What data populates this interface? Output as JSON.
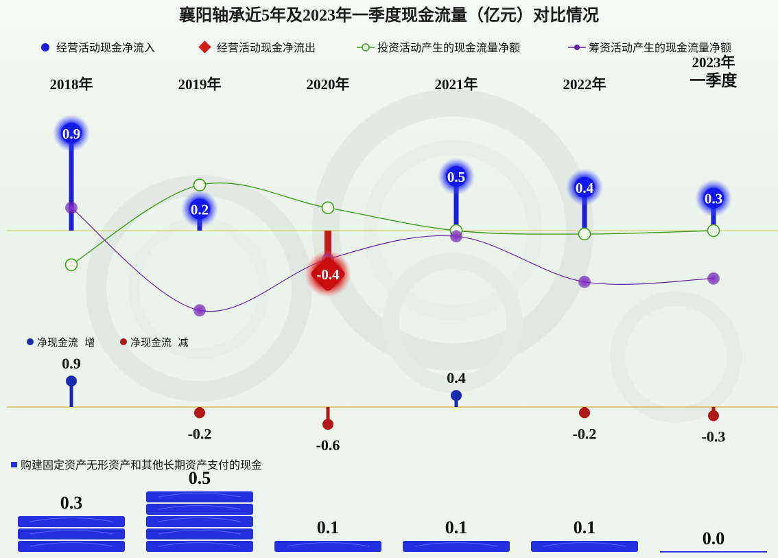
{
  "chart_data": {
    "type": "combo",
    "title": "襄阳轴承近5年及2023年一季度现金流量（亿元）对比情况",
    "categories": [
      "2018年",
      "2019年",
      "2020年",
      "2021年",
      "2022年",
      "2023年\n一季度"
    ],
    "legend_top": [
      {
        "name": "经营活动现金净流入",
        "color": "#1a1fd6",
        "marker": "dot"
      },
      {
        "name": "经营活动现金净流出",
        "color": "#d11b1b",
        "marker": "diamond"
      },
      {
        "name": "投资活动产生的现金流量净额",
        "color": "#3f9e1f",
        "marker": "ring"
      },
      {
        "name": "筹资活动产生的现金流量净额",
        "color": "#6a1fa8",
        "marker": "dot"
      }
    ],
    "operating_cash_flow": [
      0.9,
      0.2,
      -0.4,
      0.5,
      0.4,
      0.3
    ],
    "operating_labels": [
      "0.9",
      "0.2",
      "-0.4",
      "0.5",
      "0.4",
      "0.3"
    ],
    "investing_cash_flow": [
      -0.3,
      0.4,
      0.2,
      0.0,
      -0.03,
      0.0
    ],
    "financing_cash_flow": [
      0.2,
      -0.7,
      -0.25,
      -0.05,
      -0.45,
      -0.42
    ],
    "net_cash_legend": [
      {
        "name": "净现金流  增",
        "color": "#1a2ab0"
      },
      {
        "name": "净现金流  减",
        "color": "#b01818"
      }
    ],
    "net_cash_change": [
      0.9,
      -0.2,
      -0.6,
      0.4,
      -0.2,
      -0.3
    ],
    "net_cash_labels": [
      "0.9",
      "-0.2",
      "-0.6",
      "0.4",
      "-0.2",
      "-0.3"
    ],
    "capex_legend": "购建固定资产无形资产和其他长期资产支付的现金",
    "capex": [
      0.3,
      0.5,
      0.1,
      0.1,
      0.1,
      0.0
    ],
    "capex_labels": [
      "0.3",
      "0.5",
      "0.1",
      "0.1",
      "0.1",
      "0.0"
    ],
    "colors": {
      "inflow": "#1a1fd6",
      "outflow": "#c61a1a",
      "investing": "#3f9e1f",
      "financing": "#6a1fa8",
      "capex_bar": "#2230e0",
      "axis": "#c8c060"
    }
  }
}
